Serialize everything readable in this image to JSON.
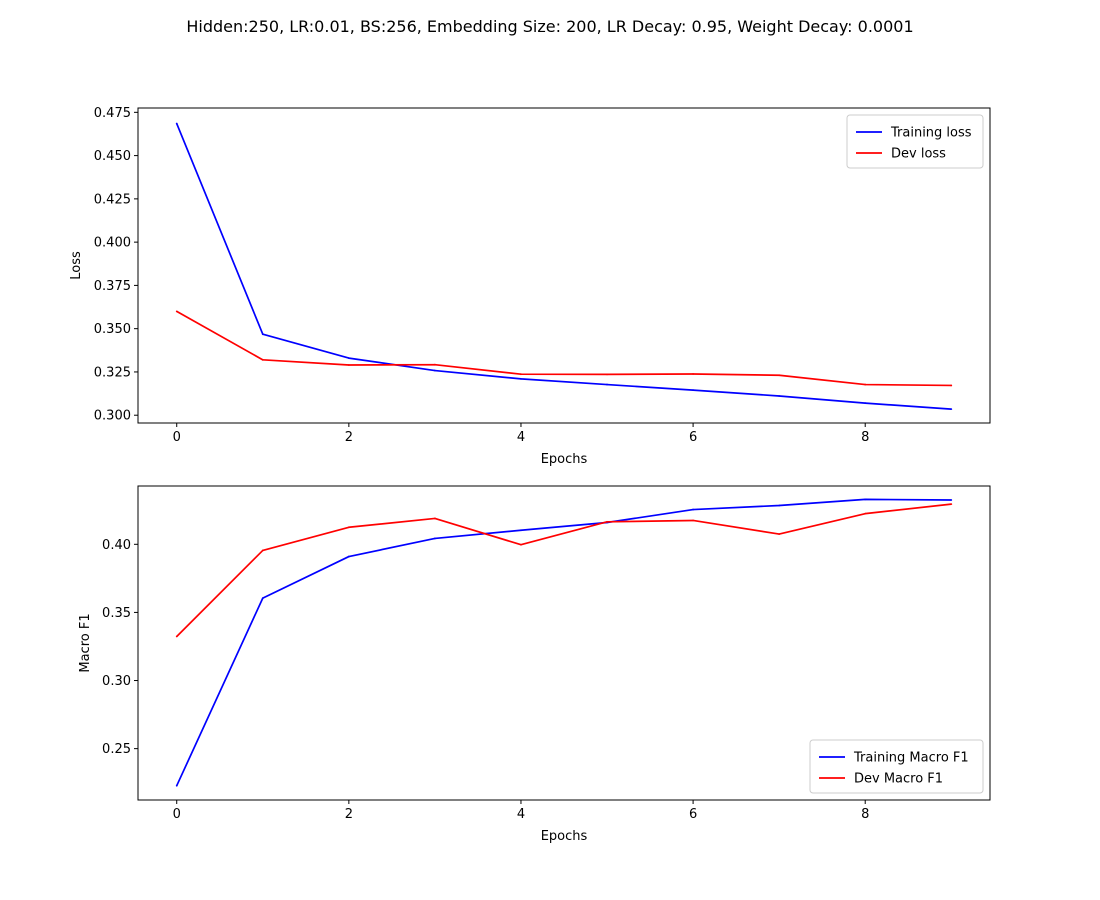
{
  "figure": {
    "suptitle": "Hidden:250, LR:0.01, BS:256, Embedding Size: 200, LR Decay: 0.95, Weight Decay: 0.0001"
  },
  "colors": {
    "training": "#0000ff",
    "dev": "#ff0000"
  },
  "chart_data": [
    {
      "type": "line",
      "xlabel": "Epochs",
      "ylabel": "Loss",
      "x": [
        0,
        1,
        2,
        3,
        4,
        5,
        6,
        7,
        8,
        9
      ],
      "xlim": [
        -0.45,
        9.45
      ],
      "ylim": [
        0.2955,
        0.4775
      ],
      "xticks": [
        0,
        2,
        4,
        6,
        8
      ],
      "yticks": [
        0.3,
        0.325,
        0.35,
        0.375,
        0.4,
        0.425,
        0.45,
        0.475
      ],
      "yticklabels": [
        "0.300",
        "0.325",
        "0.350",
        "0.375",
        "0.400",
        "0.425",
        "0.450",
        "0.475"
      ],
      "legend": "upper right",
      "series": [
        {
          "name": "Training loss",
          "color": "#0000ff",
          "values": [
            0.4685,
            0.3468,
            0.333,
            0.3258,
            0.321,
            0.3177,
            0.3145,
            0.3111,
            0.307,
            0.3035
          ]
        },
        {
          "name": "Dev loss",
          "color": "#ff0000",
          "values": [
            0.36,
            0.332,
            0.329,
            0.3292,
            0.3237,
            0.3236,
            0.3238,
            0.3231,
            0.3177,
            0.3172
          ]
        }
      ]
    },
    {
      "type": "line",
      "xlabel": "Epochs",
      "ylabel": "Macro F1",
      "x": [
        0,
        1,
        2,
        3,
        4,
        5,
        6,
        7,
        8,
        9
      ],
      "xlim": [
        -0.45,
        9.45
      ],
      "ylim": [
        0.2123,
        0.4428
      ],
      "xticks": [
        0,
        2,
        4,
        6,
        8
      ],
      "yticks": [
        0.25,
        0.3,
        0.35,
        0.4
      ],
      "yticklabels": [
        "0.25",
        "0.30",
        "0.35",
        "0.40"
      ],
      "legend": "lower right",
      "series": [
        {
          "name": "Training Macro F1",
          "color": "#0000ff",
          "values": [
            0.2228,
            0.3605,
            0.391,
            0.4043,
            0.4103,
            0.416,
            0.4255,
            0.4285,
            0.433,
            0.4325
          ]
        },
        {
          "name": "Dev Macro F1",
          "color": "#ff0000",
          "values": [
            0.3323,
            0.3955,
            0.4125,
            0.419,
            0.3997,
            0.4165,
            0.4175,
            0.4075,
            0.4225,
            0.4295
          ]
        }
      ]
    }
  ]
}
